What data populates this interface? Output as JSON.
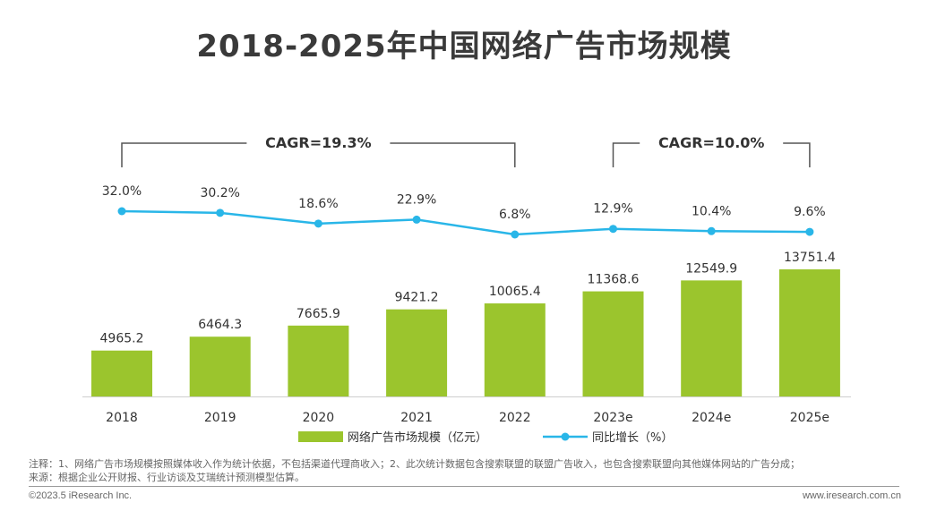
{
  "title": "2018-2025年中国网络广告市场规模",
  "chart_data": {
    "type": "bar",
    "categories": [
      "2018",
      "2019",
      "2020",
      "2021",
      "2022",
      "2023e",
      "2024e",
      "2025e"
    ],
    "series": [
      {
        "name": "网络广告市场规模（亿元）",
        "type": "bar",
        "values": [
          4965.2,
          6464.3,
          7665.9,
          9421.2,
          10065.4,
          11368.6,
          12549.9,
          13751.4
        ],
        "labels": [
          "4965.2",
          "6464.3",
          "7665.9",
          "9421.2",
          "10065.4",
          "11368.6",
          "12549.9",
          "13751.4"
        ]
      },
      {
        "name": "同比增长（%）",
        "type": "line",
        "values": [
          32.0,
          30.2,
          18.6,
          22.9,
          6.8,
          12.9,
          10.4,
          9.6
        ],
        "labels": [
          "32.0%",
          "30.2%",
          "18.6%",
          "22.9%",
          "6.8%",
          "12.9%",
          "10.4%",
          "9.6%"
        ]
      }
    ],
    "annotations": [
      {
        "text": "CAGR=19.3%",
        "from": "2018",
        "to": "2022"
      },
      {
        "text": "CAGR=10.0%",
        "from": "2023e",
        "to": "2025e"
      }
    ],
    "colors": {
      "bar": "#9bc52d",
      "line": "#29b6e8"
    }
  },
  "notes": {
    "line1": "注释：1、网络广告市场规模按照媒体收入作为统计依据，不包括渠道代理商收入；2、此次统计数据包含搜索联盟的联盟广告收入，也包含搜索联盟向其他媒体网站的广告分成；",
    "line2": "来源：根据企业公开财报、行业访谈及艾瑞统计预测模型估算。"
  },
  "footer": {
    "copyright": "©2023.5 iResearch Inc.",
    "website": "www.iresearch.com.cn"
  }
}
